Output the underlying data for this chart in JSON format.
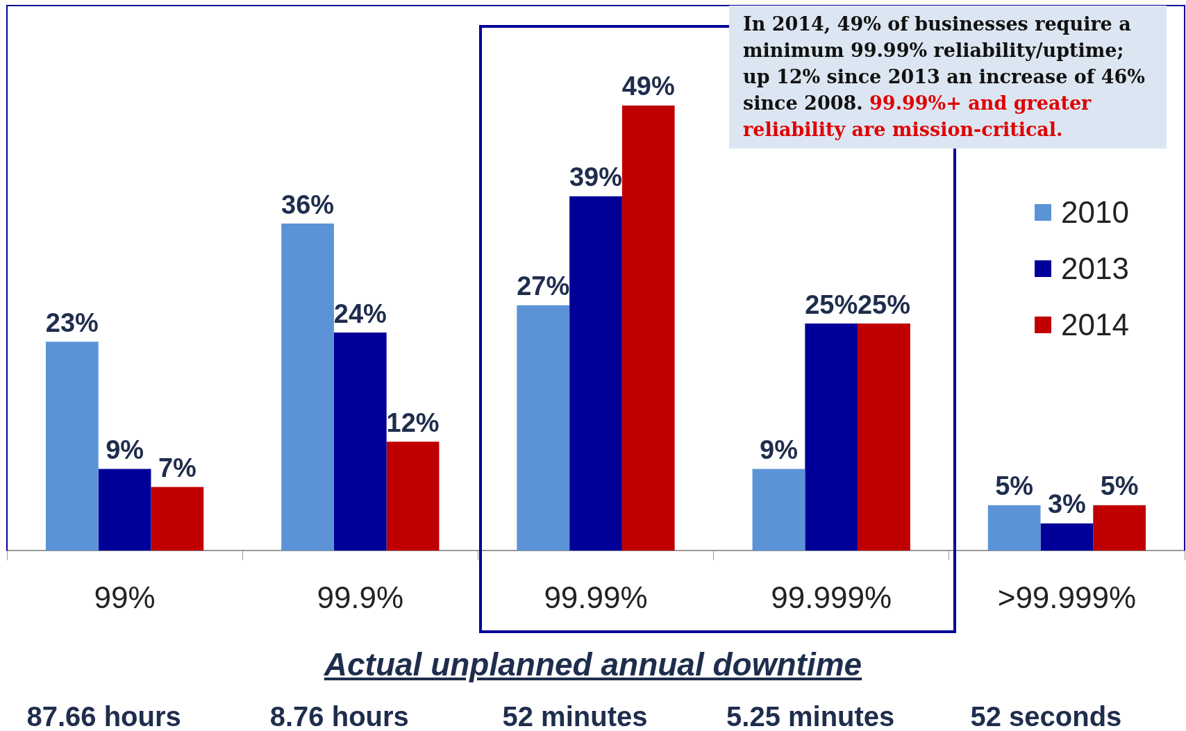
{
  "chart_data": {
    "type": "bar",
    "xlabel": "Actual unplanned annual downtime",
    "categories": [
      "99%",
      "99.9%",
      "99.99%",
      "99.999%",
      ">99.999%"
    ],
    "series": [
      {
        "name": "2010",
        "color": "#5b93d6",
        "values": [
          23,
          36,
          27,
          9,
          5
        ],
        "value_labels": [
          "23%",
          "36%",
          "27%",
          "9%",
          "5%"
        ]
      },
      {
        "name": "2013",
        "color": "#000099",
        "values": [
          9,
          24,
          39,
          25,
          3
        ],
        "value_labels": [
          "9%",
          "24%",
          "39%",
          "25%",
          "3%"
        ]
      },
      {
        "name": "2014",
        "color": "#c00000",
        "values": [
          7,
          12,
          49,
          25,
          5
        ],
        "value_labels": [
          "7%",
          "12%",
          "49%",
          "25%",
          "5%"
        ]
      }
    ],
    "legend": "right",
    "tick_labels": "x",
    "annotations": [
      "In 2014, 49% of businesses require a minimum 99.99% reliability/uptime; up 12% since 2013 an increase of 46% since 2008.",
      "99.99%+ and greater reliability are mission-critical.",
      "87.66 hours",
      "8.76 hours",
      "52 minutes",
      "5.25 minutes",
      "52 seconds"
    ]
  }
}
